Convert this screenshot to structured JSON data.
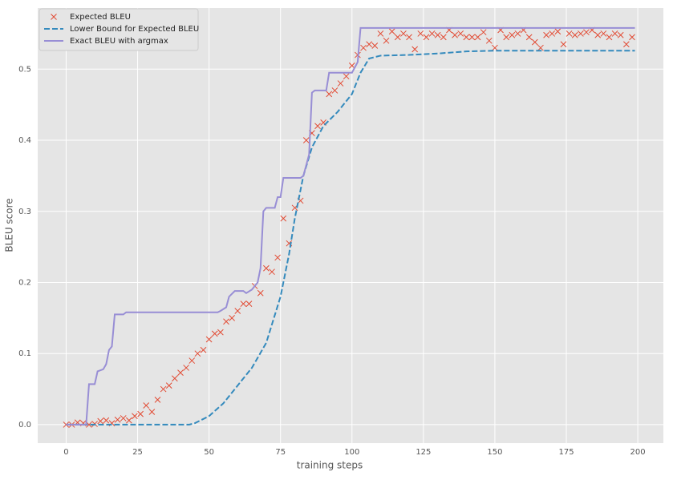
{
  "chart_data": {
    "type": "line",
    "xlabel": "training steps",
    "ylabel": "BLEU score",
    "xlim": [
      -9.95,
      208.95
    ],
    "ylim": [
      -0.026,
      0.586
    ],
    "xticks": [
      0,
      25,
      50,
      75,
      100,
      125,
      150,
      175,
      200
    ],
    "yticks": [
      {
        "value": 0,
        "label": "0.0"
      },
      0.1,
      0.2,
      0.3,
      0.4,
      0.5
    ],
    "grid": true,
    "legend": "upper left",
    "series": [
      {
        "name": "Expected BLEU",
        "color": "#E24A33",
        "marker": "x",
        "x": [
          0,
          2,
          4,
          6,
          8,
          10,
          12,
          14,
          16,
          18,
          20,
          22,
          24,
          26,
          28,
          30,
          32,
          34,
          36,
          38,
          40,
          42,
          44,
          46,
          48,
          50,
          52,
          54,
          56,
          58,
          60,
          62,
          64,
          66,
          68,
          70,
          72,
          74,
          76,
          78,
          80,
          82,
          84,
          86,
          88,
          90,
          92,
          94,
          96,
          98,
          100,
          102,
          104,
          106,
          108,
          110,
          112,
          114,
          116,
          118,
          120,
          122,
          124,
          126,
          128,
          130,
          132,
          134,
          136,
          138,
          140,
          142,
          144,
          146,
          148,
          150,
          152,
          154,
          156,
          158,
          160,
          162,
          164,
          166,
          168,
          170,
          172,
          174,
          176,
          178,
          180,
          182,
          184,
          186,
          188,
          190,
          192,
          194,
          196,
          198
        ],
        "values": [
          0,
          0,
          0.003,
          0.002,
          0,
          0.001,
          0.005,
          0.006,
          0.002,
          0.007,
          0.009,
          0.006,
          0.012,
          0.015,
          0.027,
          0.018,
          0.035,
          0.05,
          0.055,
          0.065,
          0.073,
          0.08,
          0.09,
          0.1,
          0.105,
          0.12,
          0.128,
          0.13,
          0.145,
          0.15,
          0.16,
          0.17,
          0.17,
          0.195,
          0.185,
          0.22,
          0.215,
          0.235,
          0.29,
          0.255,
          0.305,
          0.315,
          0.4,
          0.41,
          0.42,
          0.425,
          0.465,
          0.47,
          0.48,
          0.49,
          0.505,
          0.52,
          0.53,
          0.535,
          0.533,
          0.55,
          0.54,
          0.553,
          0.545,
          0.55,
          0.545,
          0.528,
          0.55,
          0.545,
          0.55,
          0.548,
          0.545,
          0.555,
          0.548,
          0.55,
          0.545,
          0.545,
          0.545,
          0.552,
          0.54,
          0.53,
          0.555,
          0.545,
          0.548,
          0.55,
          0.555,
          0.545,
          0.538,
          0.53,
          0.548,
          0.55,
          0.553,
          0.535,
          0.55,
          0.548,
          0.55,
          0.552,
          0.555,
          0.548,
          0.55,
          0.545,
          0.55,
          0.548,
          0.535,
          0.545
        ]
      },
      {
        "name": "Lower Bound for Expected BLEU",
        "color": "#348ABD",
        "linestyle": "dashed",
        "x": [
          0,
          43,
          45,
          50,
          55,
          60,
          65,
          70,
          75,
          78,
          80,
          83,
          86,
          90,
          95,
          100,
          103,
          106,
          110,
          120,
          130,
          140,
          150,
          199
        ],
        "values": [
          0,
          0,
          0.002,
          0.012,
          0.03,
          0.055,
          0.08,
          0.115,
          0.18,
          0.24,
          0.29,
          0.35,
          0.39,
          0.42,
          0.44,
          0.465,
          0.495,
          0.515,
          0.519,
          0.52,
          0.522,
          0.525,
          0.526,
          0.526
        ]
      },
      {
        "name": "Exact BLEU with argmax",
        "color": "#988ED5",
        "linestyle": "solid",
        "x": [
          0,
          7,
          8,
          10,
          11,
          13,
          14,
          15,
          16,
          17,
          20,
          21,
          53,
          54,
          56,
          57,
          59,
          62,
          63,
          65,
          67,
          68,
          69,
          70,
          73,
          74,
          75,
          76,
          82,
          83,
          85,
          86,
          87,
          91,
          92,
          100,
          102,
          103,
          199
        ],
        "values": [
          0,
          0,
          0.057,
          0.057,
          0.075,
          0.078,
          0.085,
          0.105,
          0.11,
          0.155,
          0.155,
          0.158,
          0.158,
          0.16,
          0.165,
          0.18,
          0.188,
          0.188,
          0.185,
          0.19,
          0.2,
          0.22,
          0.3,
          0.305,
          0.305,
          0.32,
          0.32,
          0.347,
          0.347,
          0.35,
          0.38,
          0.467,
          0.47,
          0.47,
          0.495,
          0.495,
          0.51,
          0.558,
          0.558
        ]
      }
    ]
  }
}
